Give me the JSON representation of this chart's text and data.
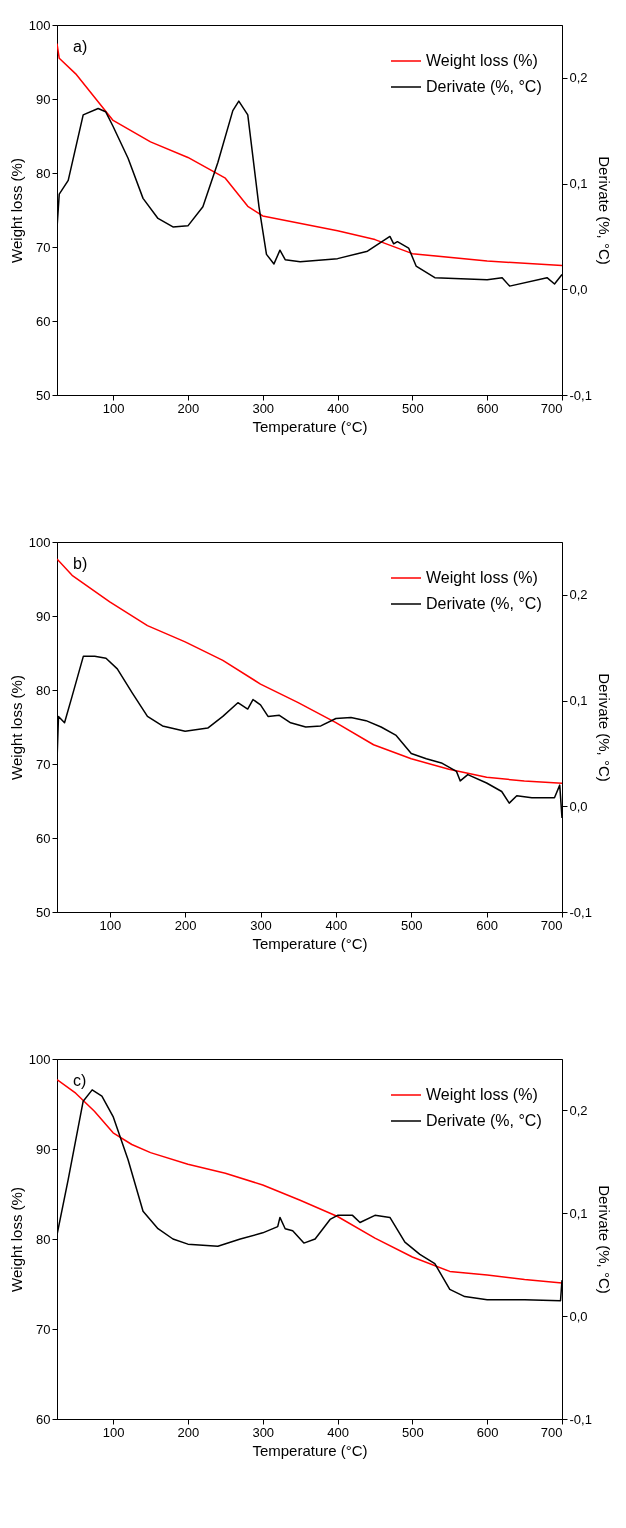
{
  "chart_data": [
    {
      "type": "line",
      "annotations": [
        "a)"
      ],
      "xlabel": "Temperature (°C)",
      "ylabel": "Weight loss (%)",
      "y2label": "Derivate (%, °C)",
      "legend": "top right",
      "grid": false,
      "xlim": [
        25,
        700
      ],
      "xticks": [
        100,
        200,
        300,
        400,
        500,
        600,
        700
      ],
      "ylim": [
        50,
        100
      ],
      "yticks": [
        50,
        60,
        70,
        80,
        90,
        100
      ],
      "y2lim": [
        -0.1,
        0.25
      ],
      "y2ticks": [
        {
          "value": -0.1,
          "label": "-0,1"
        },
        {
          "value": 0.0,
          "label": "0,0"
        },
        {
          "value": 0.1,
          "label": "0,1"
        },
        {
          "value": 0.2,
          "label": "0,2"
        }
      ],
      "series": [
        {
          "name": "Weight loss (%)",
          "color": "#ff0000",
          "x": [
            25,
            28,
            50,
            100,
            150,
            200,
            250,
            280,
            300,
            400,
            450,
            500,
            600,
            700
          ],
          "values": [
            97.5,
            95.5,
            93.4,
            87.1,
            84.2,
            82.1,
            79.3,
            75.5,
            74.2,
            72.2,
            71.0,
            69.1,
            68.1,
            67.5
          ]
        },
        {
          "name": "Derivate (%, °C)",
          "color": "#000000",
          "axis": "y2",
          "x": [
            25,
            28,
            40,
            60,
            80,
            90,
            100,
            120,
            140,
            160,
            180,
            200,
            220,
            240,
            260,
            268,
            280,
            295,
            305,
            315,
            323,
            330,
            350,
            400,
            440,
            470,
            475,
            480,
            495,
            505,
            530,
            600,
            620,
            630,
            680,
            690,
            700
          ],
          "values": [
            0.058,
            0.09,
            0.103,
            0.165,
            0.171,
            0.168,
            0.154,
            0.124,
            0.086,
            0.067,
            0.059,
            0.06,
            0.078,
            0.12,
            0.169,
            0.178,
            0.165,
            0.078,
            0.033,
            0.024,
            0.037,
            0.028,
            0.026,
            0.029,
            0.036,
            0.05,
            0.043,
            0.045,
            0.039,
            0.022,
            0.011,
            0.009,
            0.011,
            0.003,
            0.011,
            0.005,
            0.014
          ]
        }
      ]
    },
    {
      "type": "line",
      "annotations": [
        "b)"
      ],
      "xlabel": "Temperature (°C)",
      "ylabel": "Weight loss (%)",
      "y2label": "Derivate (%, °C)",
      "legend": "top right",
      "grid": false,
      "xlim": [
        30,
        700
      ],
      "xticks": [
        100,
        200,
        300,
        400,
        500,
        600,
        700
      ],
      "ylim": [
        50,
        100
      ],
      "yticks": [
        50,
        60,
        70,
        80,
        90,
        100
      ],
      "y2lim": [
        -0.1,
        0.25
      ],
      "y2ticks": [
        {
          "value": -0.1,
          "label": "-0,1"
        },
        {
          "value": 0.0,
          "label": "0,0"
        },
        {
          "value": 0.1,
          "label": "0,1"
        },
        {
          "value": 0.2,
          "label": "0,2"
        }
      ],
      "series": [
        {
          "name": "Weight loss (%)",
          "color": "#ff0000",
          "x": [
            30,
            50,
            100,
            150,
            200,
            250,
            300,
            350,
            400,
            450,
            500,
            550,
            600,
            650,
            700
          ],
          "values": [
            97.7,
            95.5,
            91.9,
            88.7,
            86.5,
            84.0,
            80.8,
            78.3,
            75.6,
            72.6,
            70.7,
            69.3,
            68.2,
            67.7,
            67.4
          ]
        },
        {
          "name": "Derivate (%, °C)",
          "color": "#000000",
          "axis": "y2",
          "x": [
            30,
            32,
            40,
            50,
            65,
            80,
            95,
            110,
            130,
            150,
            170,
            200,
            230,
            250,
            270,
            283,
            290,
            300,
            310,
            325,
            340,
            360,
            380,
            400,
            420,
            440,
            460,
            480,
            500,
            520,
            540,
            560,
            565,
            575,
            600,
            620,
            630,
            640,
            660,
            690,
            697,
            700
          ],
          "values": [
            0.043,
            0.085,
            0.079,
            0.104,
            0.142,
            0.142,
            0.14,
            0.13,
            0.107,
            0.085,
            0.076,
            0.071,
            0.074,
            0.085,
            0.098,
            0.092,
            0.101,
            0.096,
            0.085,
            0.086,
            0.079,
            0.075,
            0.076,
            0.083,
            0.084,
            0.081,
            0.075,
            0.067,
            0.05,
            0.045,
            0.041,
            0.033,
            0.024,
            0.03,
            0.022,
            0.014,
            0.003,
            0.01,
            0.008,
            0.008,
            0.02,
            -0.011
          ]
        }
      ]
    },
    {
      "type": "line",
      "annotations": [
        "c)"
      ],
      "xlabel": "Temperature (°C)",
      "ylabel": "Weight loss (%)",
      "y2label": "Derivate (%, °C)",
      "legend": "top right",
      "grid": false,
      "xlim": [
        25,
        700
      ],
      "xticks": [
        100,
        200,
        300,
        400,
        500,
        600,
        700
      ],
      "ylim": [
        60,
        100
      ],
      "yticks": [
        60,
        70,
        80,
        90,
        100
      ],
      "y2lim": [
        -0.1,
        0.25
      ],
      "y2ticks": [
        {
          "value": -0.1,
          "label": "-0,1"
        },
        {
          "value": 0.0,
          "label": "0,0"
        },
        {
          "value": 0.1,
          "label": "0,1"
        },
        {
          "value": 0.2,
          "label": "0,2"
        }
      ],
      "series": [
        {
          "name": "Weight loss (%)",
          "color": "#ff0000",
          "x": [
            25,
            50,
            75,
            100,
            125,
            150,
            200,
            250,
            300,
            350,
            400,
            450,
            500,
            550,
            600,
            650,
            700
          ],
          "values": [
            97.7,
            96.2,
            94.2,
            91.8,
            90.5,
            89.6,
            88.3,
            87.3,
            86.0,
            84.3,
            82.5,
            80.1,
            78.0,
            76.4,
            76.0,
            75.5,
            75.1
          ]
        },
        {
          "name": "Derivate (%, °C)",
          "color": "#000000",
          "axis": "y2",
          "x": [
            25,
            40,
            60,
            72,
            85,
            100,
            120,
            140,
            160,
            180,
            200,
            240,
            270,
            300,
            320,
            323,
            330,
            340,
            355,
            370,
            390,
            400,
            420,
            430,
            450,
            470,
            490,
            510,
            530,
            550,
            570,
            600,
            650,
            698,
            700
          ],
          "values": [
            0.079,
            0.133,
            0.209,
            0.22,
            0.214,
            0.194,
            0.152,
            0.102,
            0.085,
            0.075,
            0.07,
            0.068,
            0.075,
            0.081,
            0.087,
            0.096,
            0.085,
            0.083,
            0.071,
            0.075,
            0.094,
            0.098,
            0.098,
            0.091,
            0.098,
            0.096,
            0.072,
            0.06,
            0.051,
            0.026,
            0.019,
            0.016,
            0.016,
            0.015,
            0.035
          ]
        }
      ]
    }
  ]
}
